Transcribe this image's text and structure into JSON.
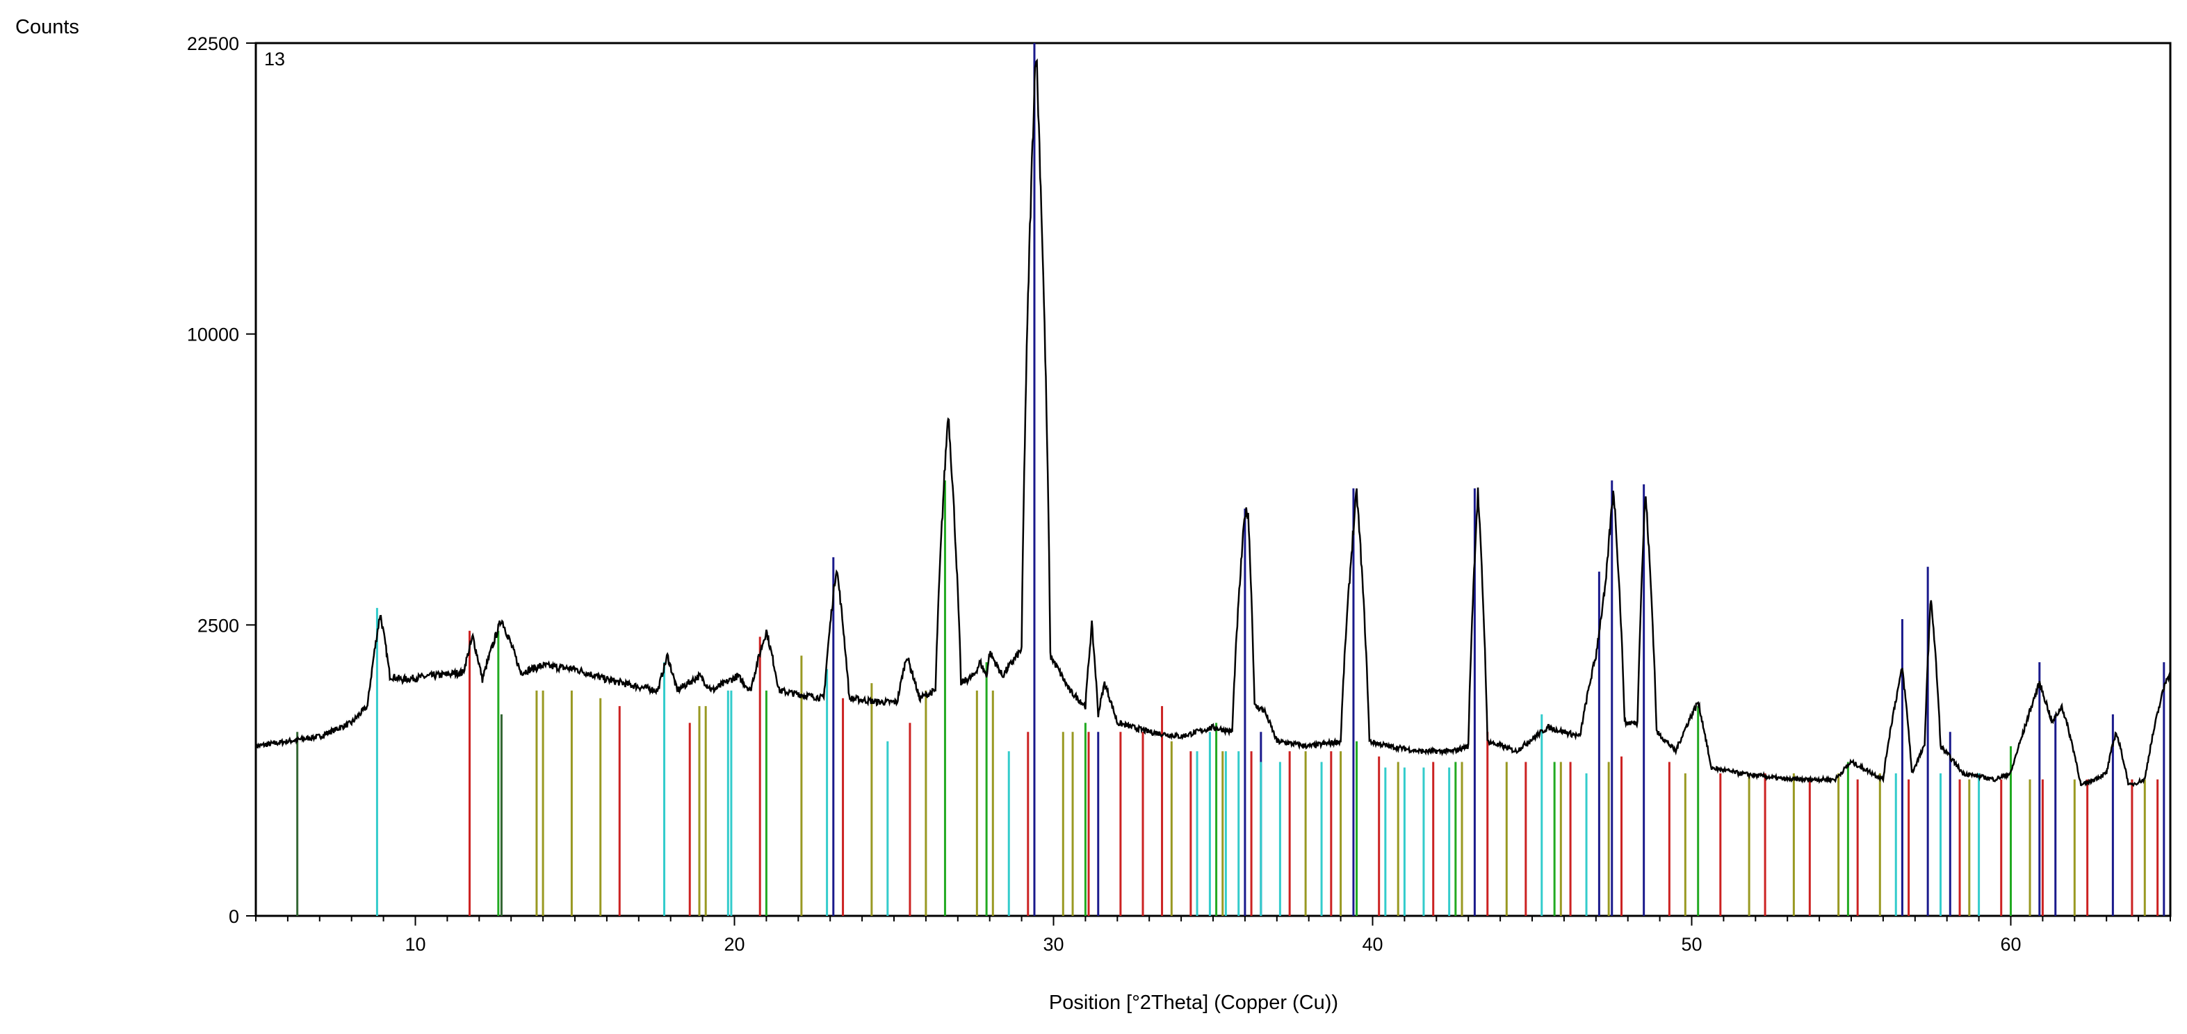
{
  "chart_data": {
    "type": "line",
    "title": "",
    "panel_label": "13",
    "xlabel": "Position [°2Theta] (Copper (Cu))",
    "ylabel": "Counts",
    "xlim": [
      5,
      65
    ],
    "y_scale": "sqrt",
    "ylim": [
      0,
      22500
    ],
    "x_ticks": [
      10,
      20,
      30,
      40,
      50,
      60
    ],
    "x_tick_labels": [
      "10",
      "20",
      "30",
      "40",
      "50",
      "60"
    ],
    "y_ticks": [
      0,
      2500,
      10000,
      22500
    ],
    "y_tick_labels": [
      "0",
      "2500",
      "10000",
      "22500"
    ],
    "grid": false,
    "legend": "none",
    "colors": {
      "pattern": "#000000",
      "blue_phase": "#1a1a8c",
      "cyan_phase": "#33cccc",
      "red_phase": "#cc2222",
      "green_phase": "#22aa22",
      "olive_phase": "#999922",
      "dark_green_phase": "#336633"
    },
    "series": [
      {
        "role": "measured-pattern",
        "x": [
          5.0,
          6.0,
          7.0,
          8.0,
          8.5,
          8.9,
          9.2,
          9.6,
          10.5,
          11.5,
          11.8,
          12.1,
          12.7,
          13.3,
          14.0,
          15.0,
          16.0,
          17.0,
          17.6,
          17.9,
          18.2,
          18.9,
          19.3,
          20.1,
          20.5,
          21.0,
          21.4,
          22.0,
          22.8,
          23.2,
          23.6,
          24.5,
          25.1,
          25.4,
          25.8,
          26.3,
          26.7,
          27.1,
          27.5,
          27.7,
          27.9,
          28.0,
          28.4,
          29.0,
          29.45,
          29.9,
          30.5,
          31.0,
          31.2,
          31.4,
          31.6,
          32.0,
          33.0,
          34.0,
          35.0,
          35.6,
          36.0,
          36.1,
          36.3,
          36.6,
          37.0,
          38.0,
          39.0,
          39.5,
          39.9,
          40.5,
          41.5,
          42.5,
          43.0,
          43.3,
          43.6,
          44.5,
          45.5,
          46.5,
          47.0,
          47.3,
          47.55,
          47.9,
          48.3,
          48.55,
          48.9,
          49.5,
          50.2,
          50.6,
          51.5,
          53.0,
          54.5,
          55.0,
          56.0,
          56.6,
          56.9,
          57.3,
          57.5,
          57.8,
          58.5,
          59.5,
          60.0,
          60.4,
          60.9,
          61.3,
          61.6,
          62.2,
          63.0,
          63.3,
          63.7,
          64.2,
          64.9
        ],
        "y": [
          850,
          900,
          950,
          1100,
          1300,
          2700,
          1700,
          1650,
          1700,
          1750,
          2300,
          1650,
          2600,
          1750,
          1850,
          1800,
          1650,
          1550,
          1500,
          2000,
          1500,
          1700,
          1500,
          1700,
          1500,
          2400,
          1500,
          1450,
          1400,
          3600,
          1400,
          1350,
          1350,
          2000,
          1400,
          1500,
          7500,
          1600,
          1700,
          1900,
          1700,
          2050,
          1700,
          2100,
          22500,
          2000,
          1500,
          1300,
          2500,
          1200,
          1600,
          1100,
          1000,
          950,
          1050,
          1000,
          4800,
          4800,
          1300,
          1250,
          900,
          850,
          900,
          5300,
          900,
          850,
          800,
          800,
          850,
          5300,
          900,
          800,
          1050,
          950,
          2000,
          3200,
          5400,
          1100,
          1100,
          5300,
          1000,
          800,
          1350,
          650,
          600,
          550,
          550,
          700,
          550,
          1800,
          600,
          850,
          3000,
          850,
          600,
          550,
          600,
          1000,
          1600,
          1100,
          1300,
          500,
          600,
          1000,
          500,
          550,
          1700
        ]
      }
    ],
    "reference_phases": [
      {
        "role": "phase-blue",
        "color": "#1a1a8c",
        "positions": [
          23.1,
          29.4,
          31.4,
          36.0,
          36.5,
          39.4,
          43.2,
          47.1,
          47.5,
          48.5,
          56.6,
          57.4,
          58.1,
          60.9,
          61.4,
          63.2,
          64.8
        ],
        "intensities": [
          3800,
          22500,
          1000,
          4900,
          1000,
          5400,
          5400,
          3500,
          5600,
          5500,
          2600,
          3600,
          1000,
          1900,
          1200,
          1200,
          1900
        ]
      },
      {
        "role": "phase-cyan",
        "color": "#33cccc",
        "positions": [
          8.8,
          17.8,
          19.8,
          19.9,
          22.9,
          24.8,
          28.6,
          34.5,
          34.9,
          35.4,
          35.8,
          36.5,
          37.1,
          38.4,
          40.4,
          41.0,
          41.6,
          42.4,
          45.3,
          46.7,
          56.4,
          57.8,
          59.0
        ],
        "intensities": [
          2800,
          1900,
          1500,
          1500,
          1800,
          900,
          800,
          800,
          1000,
          800,
          800,
          700,
          700,
          700,
          650,
          650,
          650,
          650,
          1200,
          600,
          600,
          600,
          600
        ]
      },
      {
        "role": "phase-red",
        "color": "#cc2222",
        "positions": [
          11.7,
          16.4,
          18.6,
          20.8,
          23.4,
          25.5,
          29.2,
          31.1,
          32.1,
          32.8,
          33.4,
          34.3,
          36.2,
          37.4,
          38.7,
          40.2,
          41.9,
          43.6,
          44.8,
          46.2,
          47.8,
          49.3,
          50.9,
          52.3,
          53.7,
          55.2,
          56.8,
          58.4,
          59.7,
          61.0,
          62.4,
          63.8,
          64.6
        ],
        "intensities": [
          2400,
          1300,
          1100,
          2300,
          1400,
          1100,
          1000,
          1000,
          1000,
          1000,
          1300,
          800,
          800,
          800,
          800,
          750,
          700,
          1000,
          700,
          700,
          750,
          700,
          600,
          600,
          550,
          550,
          550,
          550,
          550,
          550,
          550,
          550,
          550
        ]
      },
      {
        "role": "phase-green",
        "color": "#22aa22",
        "positions": [
          12.6,
          21.0,
          26.6,
          27.9,
          31.0,
          35.1,
          39.5,
          42.6,
          45.7,
          50.2,
          54.9,
          60.0
        ],
        "intensities": [
          2400,
          1500,
          5600,
          1900,
          1100,
          1100,
          900,
          700,
          700,
          1300,
          700,
          850
        ]
      },
      {
        "role": "phase-olive",
        "color": "#999922",
        "positions": [
          13.8,
          14.0,
          14.9,
          15.8,
          18.9,
          19.1,
          22.1,
          24.3,
          26.0,
          27.6,
          28.1,
          30.3,
          30.6,
          33.7,
          35.3,
          37.9,
          39.0,
          40.8,
          42.8,
          44.2,
          45.9,
          47.4,
          49.8,
          51.8,
          53.2,
          54.6,
          55.9,
          58.7,
          60.6,
          62.0,
          64.2
        ],
        "intensities": [
          1500,
          1500,
          1500,
          1400,
          1300,
          1300,
          2000,
          1600,
          1500,
          1500,
          1500,
          1000,
          1000,
          900,
          800,
          800,
          800,
          700,
          700,
          700,
          700,
          700,
          600,
          600,
          600,
          600,
          600,
          550,
          550,
          550,
          550
        ]
      },
      {
        "role": "phase-dark-green",
        "color": "#336633",
        "positions": [
          6.3,
          12.7
        ],
        "intensities": [
          1000,
          1200
        ]
      }
    ]
  }
}
